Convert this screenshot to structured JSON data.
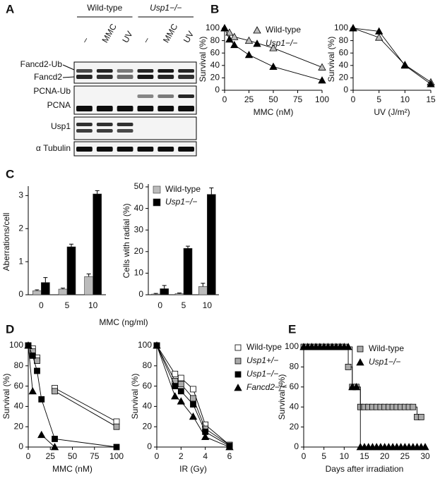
{
  "panel_labels": [
    "A",
    "B",
    "C",
    "D",
    "E"
  ],
  "blot": {
    "groups": [
      "Wild-type",
      "Usp1−/−"
    ],
    "lanes": [
      "–",
      "MMC",
      "UV",
      "–",
      "MMC",
      "UV"
    ],
    "bands": [
      "Fancd2-Ub",
      "Fancd2",
      "PCNA-Ub",
      "PCNA",
      "Usp1",
      "α Tubulin"
    ]
  },
  "chart_data": [
    {
      "type": "line",
      "xlabel": "MMC (nM)",
      "ylabel": "Survival (%)",
      "x": [
        0,
        5,
        10,
        25,
        50,
        100
      ],
      "xlim": [
        0,
        100
      ],
      "xticks": [
        0,
        25,
        50,
        75,
        100
      ],
      "ylim": [
        0,
        100
      ],
      "yticks": [
        0,
        20,
        40,
        60,
        80,
        100
      ],
      "legend": "upper right",
      "series": [
        {
          "name": "Wild-type",
          "color": "#bbbbbb",
          "marker": "triangle",
          "values": [
            100,
            93,
            86,
            80,
            68,
            37
          ]
        },
        {
          "name": "Usp1−/−",
          "italic": true,
          "color": "#000000",
          "marker": "triangle",
          "values": [
            100,
            82,
            73,
            57,
            38,
            16
          ]
        }
      ]
    },
    {
      "type": "line",
      "xlabel": "UV (J/m²)",
      "ylabel": "Survival (%)",
      "x": [
        0,
        5,
        10,
        15
      ],
      "xlim": [
        0,
        15
      ],
      "xticks": [
        0,
        5,
        10,
        15
      ],
      "ylim": [
        0,
        100
      ],
      "yticks": [
        0,
        20,
        40,
        60,
        80,
        100
      ],
      "series": [
        {
          "color": "#bbbbbb",
          "marker": "triangle",
          "values": [
            100,
            85,
            41,
            13
          ]
        },
        {
          "color": "#000000",
          "marker": "triangle",
          "values": [
            100,
            95,
            40,
            10
          ]
        }
      ]
    },
    {
      "type": "bar",
      "xlabel": "MMC (ng/ml)",
      "ylabel": "Aberrations/cell",
      "categories": [
        "0",
        "5",
        "10"
      ],
      "ylim": [
        0,
        3.2
      ],
      "yticks": [
        0,
        1,
        2,
        3
      ],
      "series": [
        {
          "color": "#bbbbbb",
          "values": [
            0.12,
            0.17,
            0.55
          ],
          "errors": [
            0.03,
            0.03,
            0.08
          ]
        },
        {
          "color": "#000000",
          "values": [
            0.37,
            1.45,
            3.05
          ],
          "errors": [
            0.15,
            0.08,
            0.1
          ]
        }
      ]
    },
    {
      "type": "bar",
      "ylabel": "Cells with radial (%)",
      "categories": [
        "0",
        "5",
        "10"
      ],
      "ylim": [
        0,
        50
      ],
      "yticks": [
        0,
        10,
        20,
        30,
        40,
        50
      ],
      "legend": "upper left",
      "series": [
        {
          "name": "Wild-type",
          "color": "#bbbbbb",
          "values": [
            0.3,
            0.5,
            3.8
          ],
          "errors": [
            0.3,
            0.3,
            1.5
          ]
        },
        {
          "name": "Usp1−/−",
          "italic": true,
          "color": "#000000",
          "values": [
            2.8,
            21.5,
            46.5
          ],
          "errors": [
            1.5,
            1,
            3
          ]
        }
      ]
    },
    {
      "type": "line",
      "xlabel": "MMC (nM)",
      "ylabel": "Survival (%)",
      "x": [
        0,
        5,
        10,
        15,
        30,
        100
      ],
      "xlim": [
        0,
        100
      ],
      "xticks": [
        0,
        25,
        50,
        75,
        100
      ],
      "ylim": [
        0,
        100
      ],
      "yticks": [
        0,
        20,
        40,
        60,
        80,
        100
      ],
      "series": [
        {
          "color": "#ffffff",
          "marker": "square",
          "values": [
            100,
            97,
            88,
            null,
            58,
            25
          ]
        },
        {
          "color": "#aaaaaa",
          "marker": "square",
          "values": [
            100,
            94,
            85,
            null,
            55,
            20
          ]
        },
        {
          "color": "#000000",
          "marker": "square",
          "values": [
            100,
            90,
            75,
            47,
            8,
            0
          ]
        },
        {
          "color": "#000000",
          "marker": "triangle",
          "values": [
            100,
            55,
            null,
            12,
            0,
            null
          ]
        }
      ]
    },
    {
      "type": "line",
      "xlabel": "IR (Gy)",
      "ylabel": "Survival (%)",
      "x": [
        0,
        1.5,
        2,
        3,
        4,
        6
      ],
      "xlim": [
        0,
        6
      ],
      "xticks": [
        0,
        2,
        4,
        6
      ],
      "ylim": [
        0,
        100
      ],
      "yticks": [
        0,
        20,
        40,
        60,
        80,
        100
      ],
      "legend": "outside right",
      "series": [
        {
          "name": "Wild-type",
          "color": "#ffffff",
          "marker": "square",
          "values": [
            100,
            72,
            68,
            57,
            22,
            2
          ]
        },
        {
          "name": "Usp1+/−",
          "italic": true,
          "color": "#aaaaaa",
          "marker": "square",
          "values": [
            100,
            65,
            62,
            48,
            18,
            2
          ]
        },
        {
          "name": "Usp1−/−",
          "italic": true,
          "color": "#000000",
          "marker": "square",
          "values": [
            100,
            60,
            55,
            42,
            15,
            1
          ]
        },
        {
          "name": "Fancd2−/−",
          "italic": true,
          "color": "#000000",
          "marker": "triangle",
          "values": [
            100,
            50,
            45,
            30,
            10,
            0
          ]
        }
      ]
    },
    {
      "type": "step",
      "xlabel": "Days after irradiation",
      "ylabel": "Survival (%)",
      "x": [
        0,
        1,
        2,
        3,
        4,
        5,
        6,
        7,
        8,
        9,
        10,
        11,
        12,
        13,
        14,
        15,
        16,
        17,
        18,
        19,
        20,
        21,
        22,
        23,
        24,
        25,
        26,
        27,
        28,
        29,
        30
      ],
      "xlim": [
        0,
        30
      ],
      "xticks": [
        0,
        5,
        10,
        15,
        20,
        25,
        30
      ],
      "ylim": [
        0,
        100
      ],
      "yticks": [
        0,
        20,
        40,
        60,
        80,
        100
      ],
      "legend": "upper right",
      "series": [
        {
          "name": "Wild-type",
          "color": "#aaaaaa",
          "marker": "square",
          "values": [
            100,
            100,
            100,
            100,
            100,
            100,
            100,
            100,
            100,
            100,
            100,
            80,
            60,
            60,
            40,
            40,
            40,
            40,
            40,
            40,
            40,
            40,
            40,
            40,
            40,
            40,
            40,
            40,
            30,
            30,
            null
          ]
        },
        {
          "name": "Usp1−/−",
          "italic": true,
          "color": "#000000",
          "marker": "triangle",
          "values": [
            100,
            100,
            100,
            100,
            100,
            100,
            100,
            100,
            100,
            100,
            100,
            100,
            60,
            60,
            0,
            0,
            0,
            0,
            0,
            0,
            0,
            0,
            0,
            0,
            0,
            0,
            0,
            0,
            0,
            0,
            0
          ]
        }
      ]
    }
  ]
}
